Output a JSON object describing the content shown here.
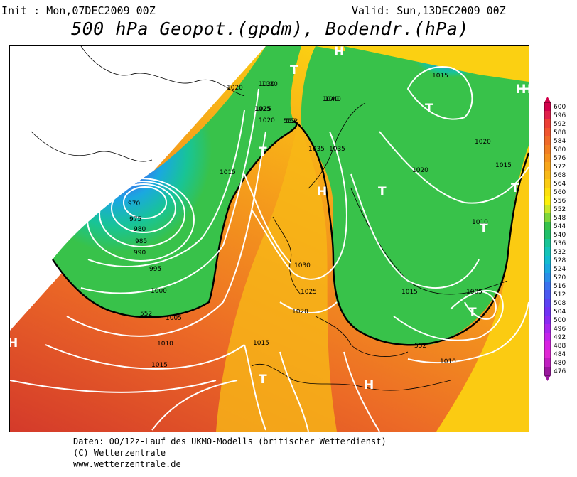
{
  "header": {
    "init": "Init : Mon,07DEC2009 00Z",
    "valid": "Valid: Sun,13DEC2009 00Z",
    "title": "500 hPa Geopot.(gpdm), Bodendr.(hPa)"
  },
  "legend": {
    "values": [
      "600",
      "596",
      "592",
      "588",
      "584",
      "580",
      "576",
      "572",
      "568",
      "564",
      "560",
      "556",
      "552",
      "548",
      "544",
      "540",
      "536",
      "532",
      "528",
      "524",
      "520",
      "516",
      "512",
      "508",
      "504",
      "500",
      "496",
      "492",
      "488",
      "484",
      "480",
      "476"
    ],
    "colors": [
      "#d2004b",
      "#e0204a",
      "#ec3f35",
      "#f0552e",
      "#f06a28",
      "#f27e22",
      "#f5921d",
      "#f7a51a",
      "#f8b817",
      "#fbcb12",
      "#fde00c",
      "#fcf00a",
      "#c8e82a",
      "#7fd63a",
      "#38c24a",
      "#20c06a",
      "#18c496",
      "#14c4b8",
      "#12bcd0",
      "#1aa8e0",
      "#2a8ee8",
      "#3a72ee",
      "#4a58f0",
      "#5c42f2",
      "#7032f4",
      "#8a2af2",
      "#a826ee",
      "#c424ea",
      "#d822e2",
      "#e028d4",
      "#c020c0",
      "#9a189e"
    ]
  },
  "map": {
    "isobars": [
      "970",
      "975",
      "980",
      "985",
      "990",
      "995",
      "1000",
      "1005",
      "1010",
      "1015",
      "1020",
      "1025",
      "1030",
      "1035",
      "1040",
      "1030",
      "1020",
      "1025",
      "1015",
      "1020",
      "1015",
      "1015",
      "1010",
      "1005",
      "1010",
      "1015",
      "1020",
      "1025",
      "1030",
      "1035",
      "1020",
      "1040",
      "1015"
    ],
    "geopot_labels": [
      "552",
      "552",
      "552",
      "552"
    ],
    "pressure_centers": [
      "H",
      "T",
      "T",
      "T",
      "H",
      "T",
      "T",
      "T",
      "H",
      "T",
      "H",
      "H",
      "T",
      "H"
    ]
  },
  "footer": {
    "line1": "Daten: 00/12z-Lauf des UKMO-Modells (britischer Wetterdienst)",
    "line2": "(C) Wetterzentrale",
    "line3": "www.wetterzentrale.de"
  }
}
